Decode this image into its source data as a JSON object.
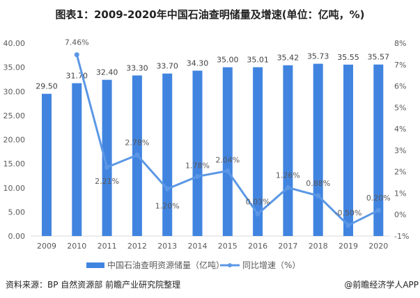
{
  "title": "图表1：2009-2020年中国石油查明储量及增速(单位：亿吨，%)",
  "chart_data": {
    "type": "bar+line",
    "categories": [
      "2009",
      "2010",
      "2011",
      "2012",
      "2013",
      "2014",
      "2015",
      "2016",
      "2017",
      "2018",
      "2019",
      "2020"
    ],
    "series": [
      {
        "name": "中国石油查明资源储量（亿吨）",
        "type": "bar",
        "axis": "left",
        "color": "#4184E0",
        "values": [
          29.5,
          31.7,
          32.4,
          33.3,
          33.7,
          34.3,
          35.0,
          35.01,
          35.42,
          35.73,
          35.55,
          35.57
        ],
        "labels": [
          "29.50",
          "31.70",
          "32.40",
          "33.30",
          "33.70",
          "34.30",
          "35.00",
          "35.01",
          "35.42",
          "35.73",
          "35.55",
          "35.57"
        ]
      },
      {
        "name": "同比增速（%）",
        "type": "line",
        "axis": "right",
        "color": "#5B97E5",
        "values": [
          null,
          7.46,
          2.21,
          2.78,
          1.2,
          1.78,
          2.04,
          0.03,
          1.26,
          0.88,
          -0.5,
          0.2
        ],
        "labels": [
          "",
          "7.46%",
          "2.21%",
          "2.78%",
          "1.20%",
          "1.78%",
          "2.04%",
          "0.03%",
          "1.26%",
          "0.88%",
          "-0.50%",
          "0.20%"
        ]
      }
    ],
    "left_axis": {
      "range": [
        0,
        40
      ],
      "ticks": [
        "0.00",
        "5.00",
        "10.00",
        "15.00",
        "20.00",
        "25.00",
        "30.00",
        "35.00",
        "40.00"
      ]
    },
    "right_axis": {
      "range": [
        -1,
        8
      ],
      "ticks": [
        "-1%",
        "0%",
        "1%",
        "2%",
        "3%",
        "4%",
        "5%",
        "6%",
        "7%",
        "8%"
      ]
    },
    "grid": false,
    "legend_placement": "bottom"
  },
  "legend": {
    "bar": "中国石油查明资源储量（亿吨）",
    "line": "同比增速（%）"
  },
  "source": "资料来源：BP 自然资源部 前瞻产业研究院整理",
  "credit": "@前瞻经济学人APP"
}
